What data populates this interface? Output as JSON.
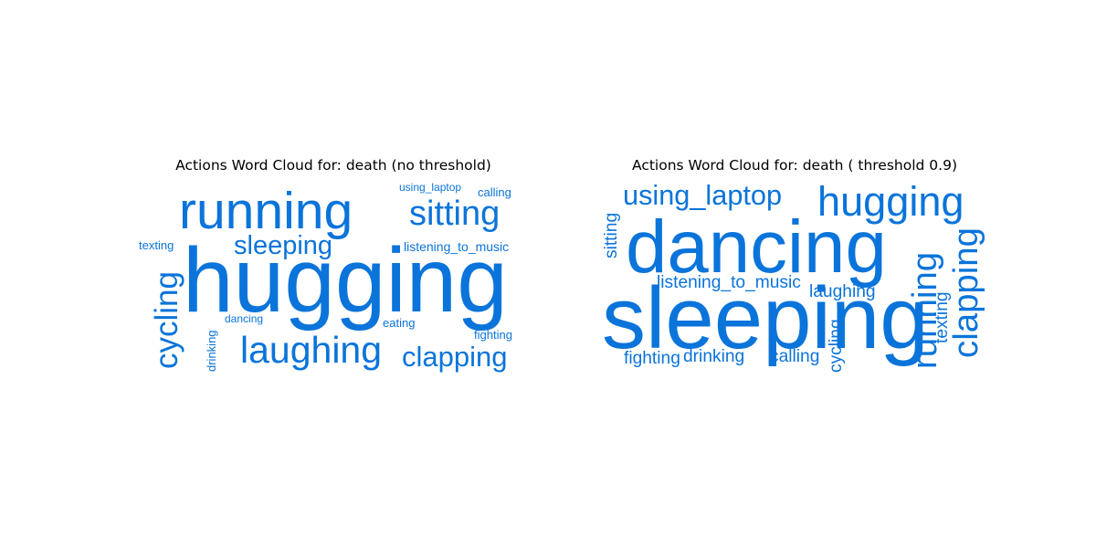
{
  "chart_data": [
    {
      "type": "wordcloud",
      "title": "Actions Word Cloud for: death (no threshold)",
      "color": "#0a74da",
      "words": [
        {
          "text": "running",
          "weight": 0.57
        },
        {
          "text": "sitting",
          "weight": 0.38
        },
        {
          "text": "using_laptop",
          "weight": 0.12
        },
        {
          "text": "calling",
          "weight": 0.13
        },
        {
          "text": "texting",
          "weight": 0.13
        },
        {
          "text": "sleeping",
          "weight": 0.29
        },
        {
          "text": "listening_to_music",
          "weight": 0.14
        },
        {
          "text": "hugging",
          "weight": 1.0
        },
        {
          "text": "cycling",
          "weight": 0.35
        },
        {
          "text": "dancing",
          "weight": 0.12
        },
        {
          "text": "drinking",
          "weight": 0.13
        },
        {
          "text": "eating",
          "weight": 0.13
        },
        {
          "text": "laughing",
          "weight": 0.41
        },
        {
          "text": "fighting",
          "weight": 0.13
        },
        {
          "text": "clapping",
          "weight": 0.31
        }
      ]
    },
    {
      "type": "wordcloud",
      "title": "Actions Word Cloud for: death ( threshold 0.9)",
      "color": "#0a74da",
      "words": [
        {
          "text": "using_laptop",
          "weight": 0.32
        },
        {
          "text": "hugging",
          "weight": 0.47
        },
        {
          "text": "sitting",
          "weight": 0.2
        },
        {
          "text": "dancing",
          "weight": 0.85
        },
        {
          "text": "listening_to_music",
          "weight": 0.2
        },
        {
          "text": "laughing",
          "weight": 0.2
        },
        {
          "text": "sleeping",
          "weight": 1.0
        },
        {
          "text": "running",
          "weight": 0.4
        },
        {
          "text": "texting",
          "weight": 0.2
        },
        {
          "text": "clapping",
          "weight": 0.4
        },
        {
          "text": "fighting",
          "weight": 0.2
        },
        {
          "text": "drinking",
          "weight": 0.2
        },
        {
          "text": "calling",
          "weight": 0.2
        },
        {
          "text": "cycling",
          "weight": 0.2
        }
      ]
    }
  ]
}
